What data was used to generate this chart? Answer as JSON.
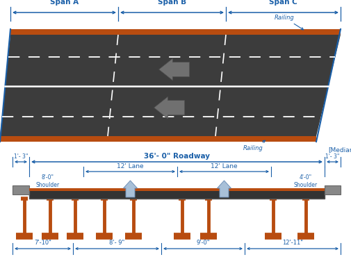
{
  "bg_color": "#ffffff",
  "blue": "#1a5fa8",
  "dark_gray": "#3c3c3c",
  "orange_brown": "#b84c10",
  "gray_arrow": "#707070",
  "span_labels": [
    "Span A",
    "Span B",
    "Span C"
  ],
  "railing_label": "Railing",
  "median_label": "[Median]",
  "roadway_label": "36'- 0\" Roadway",
  "lane1_label": "12' Lane",
  "lane2_label": "12' Lane",
  "shoulder_left_label": "8'-0\"\nShoulder",
  "shoulder_right_label": "4'-0\"\nShoulder",
  "dim1": "1'- 3\"",
  "dim2": "1'- 3\"",
  "spacing1": "7'-10\"",
  "spacing2": "8'- 9\"",
  "spacing3": "9'-0\"",
  "spacing4": "12'-11\""
}
